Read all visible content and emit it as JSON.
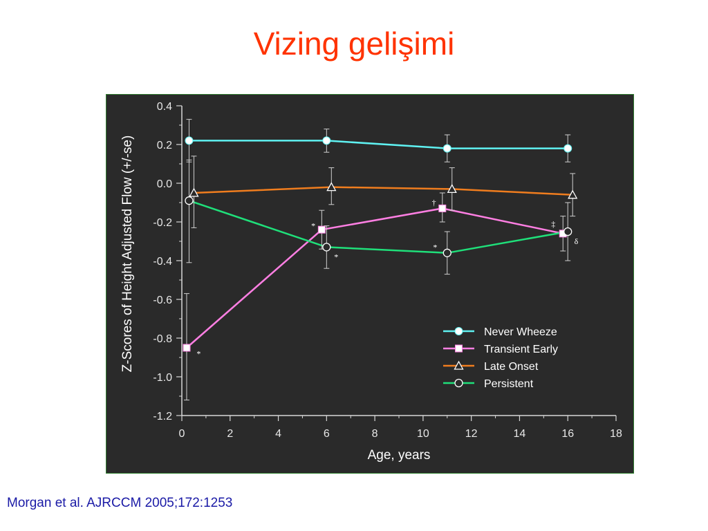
{
  "slide": {
    "title": "Vizing gelişimi",
    "citation": "Morgan et al. AJRCCM 2005;172:1253"
  },
  "chart_data": {
    "type": "line",
    "title": "",
    "xlabel": "Age, years",
    "ylabel": "Z-Scores of Height Adjusted Flow (+/-se)",
    "xlim": [
      0,
      18
    ],
    "ylim": [
      -1.2,
      0.4
    ],
    "xticks": [
      0,
      2,
      4,
      6,
      8,
      10,
      12,
      14,
      16,
      18
    ],
    "yticks": [
      0.4,
      0.2,
      0.0,
      -0.2,
      -0.4,
      -0.6,
      -0.8,
      -1.0,
      -1.2
    ],
    "ytick_labels": [
      "0.4",
      "0.2",
      "0.0",
      "-0.2",
      "-0.4",
      "-0.6",
      "-0.8",
      "-1.0",
      "-1.2"
    ],
    "xtick_labels": [
      "0",
      "2",
      "4",
      "6",
      "8",
      "10",
      "12",
      "14",
      "16",
      "18"
    ],
    "grid": false,
    "legend_position": "bottom-right",
    "series": [
      {
        "name": "Never Wheeze",
        "color": "#5ff2f2",
        "marker": "filled-circle",
        "points": [
          {
            "x": 0.3,
            "y": 0.22,
            "lo": 0.11,
            "hi": 0.33
          },
          {
            "x": 6.0,
            "y": 0.22,
            "lo": 0.16,
            "hi": 0.28
          },
          {
            "x": 11.0,
            "y": 0.18,
            "lo": 0.11,
            "hi": 0.25
          },
          {
            "x": 16.0,
            "y": 0.18,
            "lo": 0.11,
            "hi": 0.25
          }
        ]
      },
      {
        "name": "Transient Early",
        "color": "#ff7fe3",
        "marker": "filled-square",
        "points": [
          {
            "x": 0.2,
            "y": -0.85,
            "lo": -1.12,
            "hi": -0.57
          },
          {
            "x": 5.8,
            "y": -0.24,
            "lo": -0.34,
            "hi": -0.14
          },
          {
            "x": 10.8,
            "y": -0.13,
            "lo": -0.2,
            "hi": -0.05
          },
          {
            "x": 15.8,
            "y": -0.26,
            "lo": -0.35,
            "hi": -0.17
          }
        ]
      },
      {
        "name": "Late Onset",
        "color": "#f07d1e",
        "marker": "open-triangle",
        "points": [
          {
            "x": 0.5,
            "y": -0.05,
            "lo": -0.23,
            "hi": 0.14
          },
          {
            "x": 6.2,
            "y": -0.02,
            "lo": -0.11,
            "hi": 0.08
          },
          {
            "x": 11.2,
            "y": -0.03,
            "lo": -0.14,
            "hi": 0.08
          },
          {
            "x": 16.2,
            "y": -0.06,
            "lo": -0.17,
            "hi": 0.05
          }
        ]
      },
      {
        "name": "Persistent",
        "color": "#1fe07a",
        "marker": "open-circle",
        "points": [
          {
            "x": 0.3,
            "y": -0.09,
            "lo": -0.41,
            "hi": 0.12
          },
          {
            "x": 6.0,
            "y": -0.33,
            "lo": -0.44,
            "hi": -0.22
          },
          {
            "x": 11.0,
            "y": -0.36,
            "lo": -0.47,
            "hi": -0.25
          },
          {
            "x": 16.0,
            "y": -0.25,
            "lo": -0.4,
            "hi": -0.1
          }
        ]
      }
    ],
    "annotations": [
      {
        "text": "*",
        "x": 0.7,
        "y": -0.88
      },
      {
        "text": "*",
        "x": 5.45,
        "y": -0.22
      },
      {
        "text": "*",
        "x": 6.4,
        "y": -0.38
      },
      {
        "text": "†",
        "x": 10.45,
        "y": -0.1
      },
      {
        "text": "*",
        "x": 10.5,
        "y": -0.33
      },
      {
        "text": "‡",
        "x": 15.4,
        "y": -0.21
      },
      {
        "text": "δ",
        "x": 16.35,
        "y": -0.3
      }
    ]
  }
}
